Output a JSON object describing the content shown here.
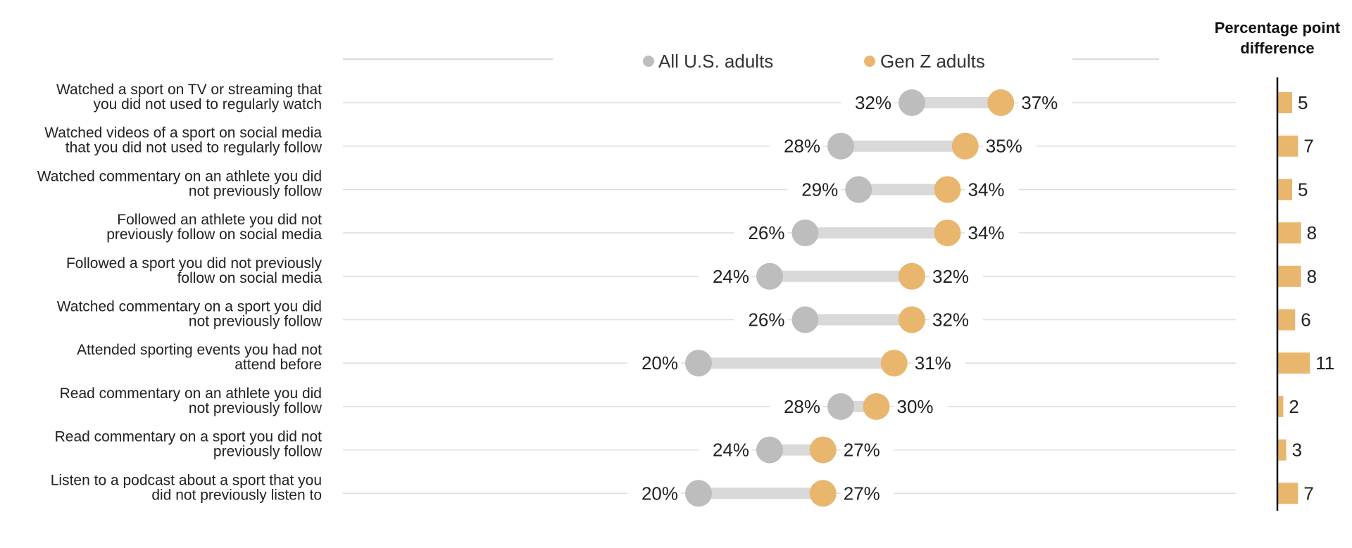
{
  "chart_data": {
    "type": "dot-plot",
    "legend": [
      {
        "name": "All U.S. adults",
        "color": "#bdbdbd"
      },
      {
        "name": "Gen Z adults",
        "color": "#e8b66d"
      }
    ],
    "diff_title": [
      "Percentage point",
      "difference"
    ],
    "xlim": [
      0,
      50
    ],
    "rows": [
      {
        "label": [
          "Watched a sport on TV or streaming that",
          "you did not used to regularly watch"
        ],
        "all": 32,
        "genz": 37,
        "all_label": "32%",
        "genz_label": "37%",
        "diff": 5
      },
      {
        "label": [
          "Watched videos of a sport on social media",
          "that you did not used to regularly follow"
        ],
        "all": 28,
        "genz": 35,
        "all_label": "28%",
        "genz_label": "35%",
        "diff": 7
      },
      {
        "label": [
          "Watched commentary on an athlete you did",
          "not previously follow"
        ],
        "all": 29,
        "genz": 34,
        "all_label": "29%",
        "genz_label": "34%",
        "diff": 5
      },
      {
        "label": [
          "Followed an athlete you did not",
          "previously follow on social media"
        ],
        "all": 26,
        "genz": 34,
        "all_label": "26%",
        "genz_label": "34%",
        "diff": 8
      },
      {
        "label": [
          "Followed a sport you did not previously",
          "follow on social media"
        ],
        "all": 24,
        "genz": 32,
        "all_label": "24%",
        "genz_label": "32%",
        "diff": 8
      },
      {
        "label": [
          "Watched commentary on a sport you did",
          "not previously follow"
        ],
        "all": 26,
        "genz": 32,
        "all_label": "26%",
        "genz_label": "32%",
        "diff": 6
      },
      {
        "label": [
          "Attended sporting events you had not",
          "attend before"
        ],
        "all": 20,
        "genz": 31,
        "all_label": "20%",
        "genz_label": "31%",
        "diff": 11
      },
      {
        "label": [
          "Read commentary on an athlete you did",
          "not previously follow"
        ],
        "all": 28,
        "genz": 30,
        "all_label": "28%",
        "genz_label": "30%",
        "diff": 2
      },
      {
        "label": [
          "Read commentary on a sport you did not",
          "previously follow"
        ],
        "all": 24,
        "genz": 27,
        "all_label": "24%",
        "genz_label": "27%",
        "diff": 3
      },
      {
        "label": [
          "Listen to a podcast about a sport that you",
          "did not previously listen to"
        ],
        "all": 20,
        "genz": 27,
        "all_label": "20%",
        "genz_label": "27%",
        "diff": 7
      }
    ]
  }
}
